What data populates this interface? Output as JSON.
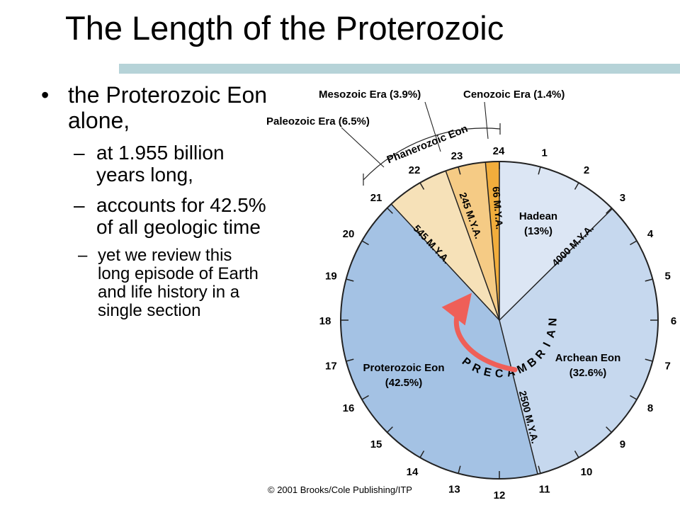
{
  "title": "The Length of the Proterozoic",
  "bullets": {
    "main": "the Proterozoic Eon alone,",
    "sub1": "at 1.955 billion years long,",
    "sub2": "accounts for 42.5% of all geologic time",
    "sub3": "yet we review this long episode of Earth and life history in a single section",
    "bullet_glyph": "•",
    "dash_glyph": "–"
  },
  "diagram": {
    "hour_numbers": [
      "1",
      "2",
      "3",
      "4",
      "5",
      "6",
      "7",
      "8",
      "9",
      "10",
      "11",
      "12",
      "13",
      "14",
      "15",
      "16",
      "17",
      "18",
      "19",
      "20",
      "21",
      "22",
      "23",
      "24"
    ],
    "sectors": {
      "hadean": {
        "name": "Hadean",
        "percent": "(13%)",
        "color": "#dce6f4"
      },
      "archean": {
        "name": "Archean Eon",
        "percent": "(32.6%)",
        "color": "#c6d8ee"
      },
      "proterozoic": {
        "name": "Proterozoic Eon",
        "percent": "(42.5%)",
        "color": "#a4c2e4"
      },
      "paleozoic": {
        "color": "#f6e1b8"
      },
      "mesozoic": {
        "color": "#f5cb85"
      },
      "cenozoic": {
        "color": "#f1ad3c"
      }
    },
    "boundary_labels": {
      "b4000": "4000 M.Y.A.",
      "b2500": "2500 M.Y.A.",
      "b545": "545 M.Y.A.",
      "b245": "245 M.Y.A.",
      "b66": "66 M.Y.A."
    },
    "precambrian_letters": [
      "P",
      "R",
      "E",
      "C",
      "A",
      "M",
      "B",
      "R",
      "I",
      "A",
      "N"
    ],
    "phanerozoic_label": "Phanerozoic Eon",
    "era_callouts": {
      "mesozoic": "Mesozoic Era (3.9%)",
      "cenozoic": "Cenozoic Era (1.4%)",
      "paleozoic": "Paleozoic Era (6.5%)"
    },
    "arrow_color": "#ef5f58"
  },
  "copyright": "© 2001 Brooks/Cole Publishing/ITP"
}
